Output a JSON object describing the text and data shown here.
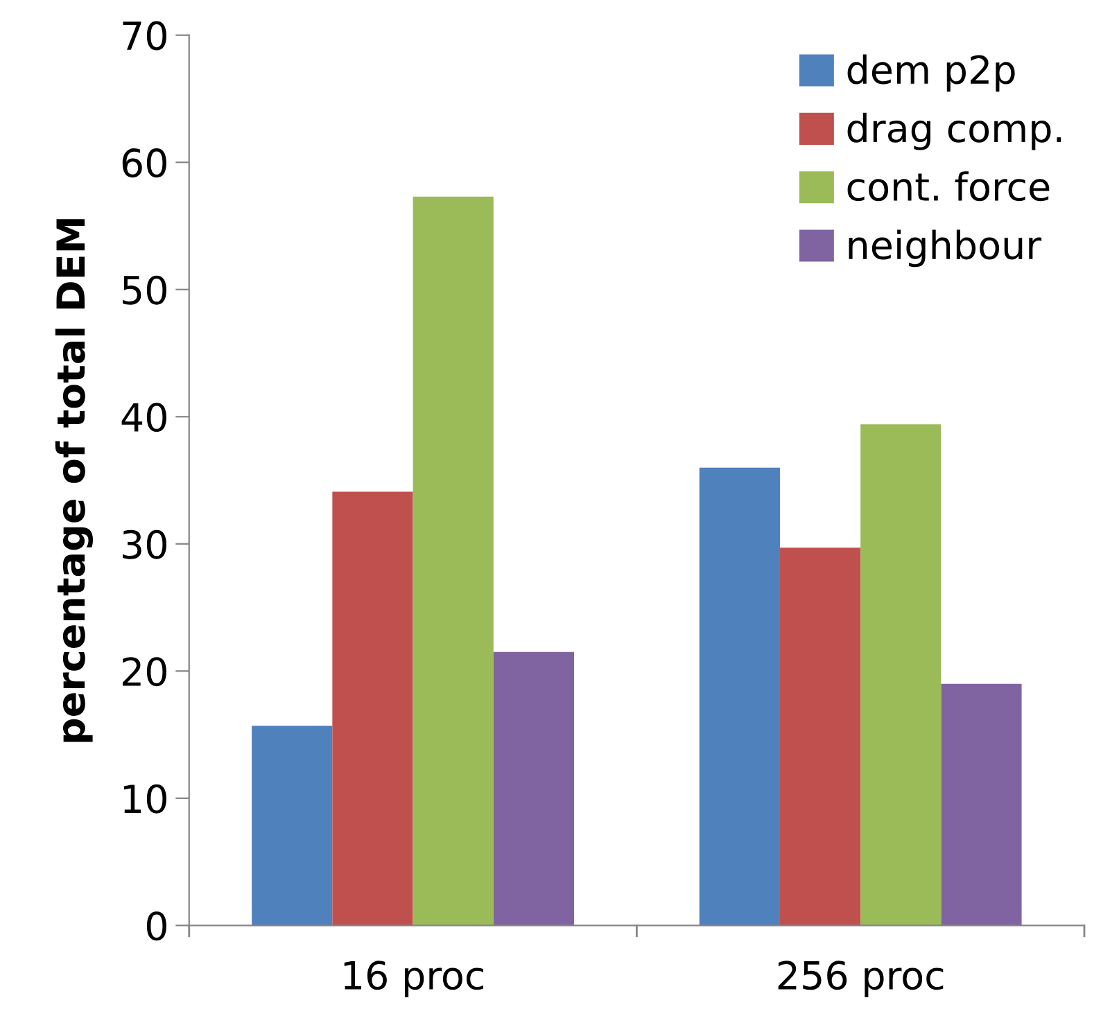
{
  "chart_data": {
    "type": "bar",
    "ylabel": "percentage of total DEM",
    "categories": [
      "16 proc",
      "256 proc"
    ],
    "series": [
      {
        "name": "dem p2p",
        "color": "#4f81bd",
        "values": [
          15.7,
          36.0
        ]
      },
      {
        "name": "drag comp.",
        "color": "#c0504d",
        "values": [
          34.1,
          29.7
        ]
      },
      {
        "name": "cont. force",
        "color": "#9bbb59",
        "values": [
          57.3,
          39.4
        ]
      },
      {
        "name": "neighbour",
        "color": "#8064a2",
        "values": [
          21.5,
          19.0
        ]
      }
    ],
    "ylim": [
      0,
      70
    ],
    "yticks": [
      0,
      10,
      20,
      30,
      40,
      50,
      60,
      70
    ],
    "grid": false,
    "legend": "top right"
  }
}
